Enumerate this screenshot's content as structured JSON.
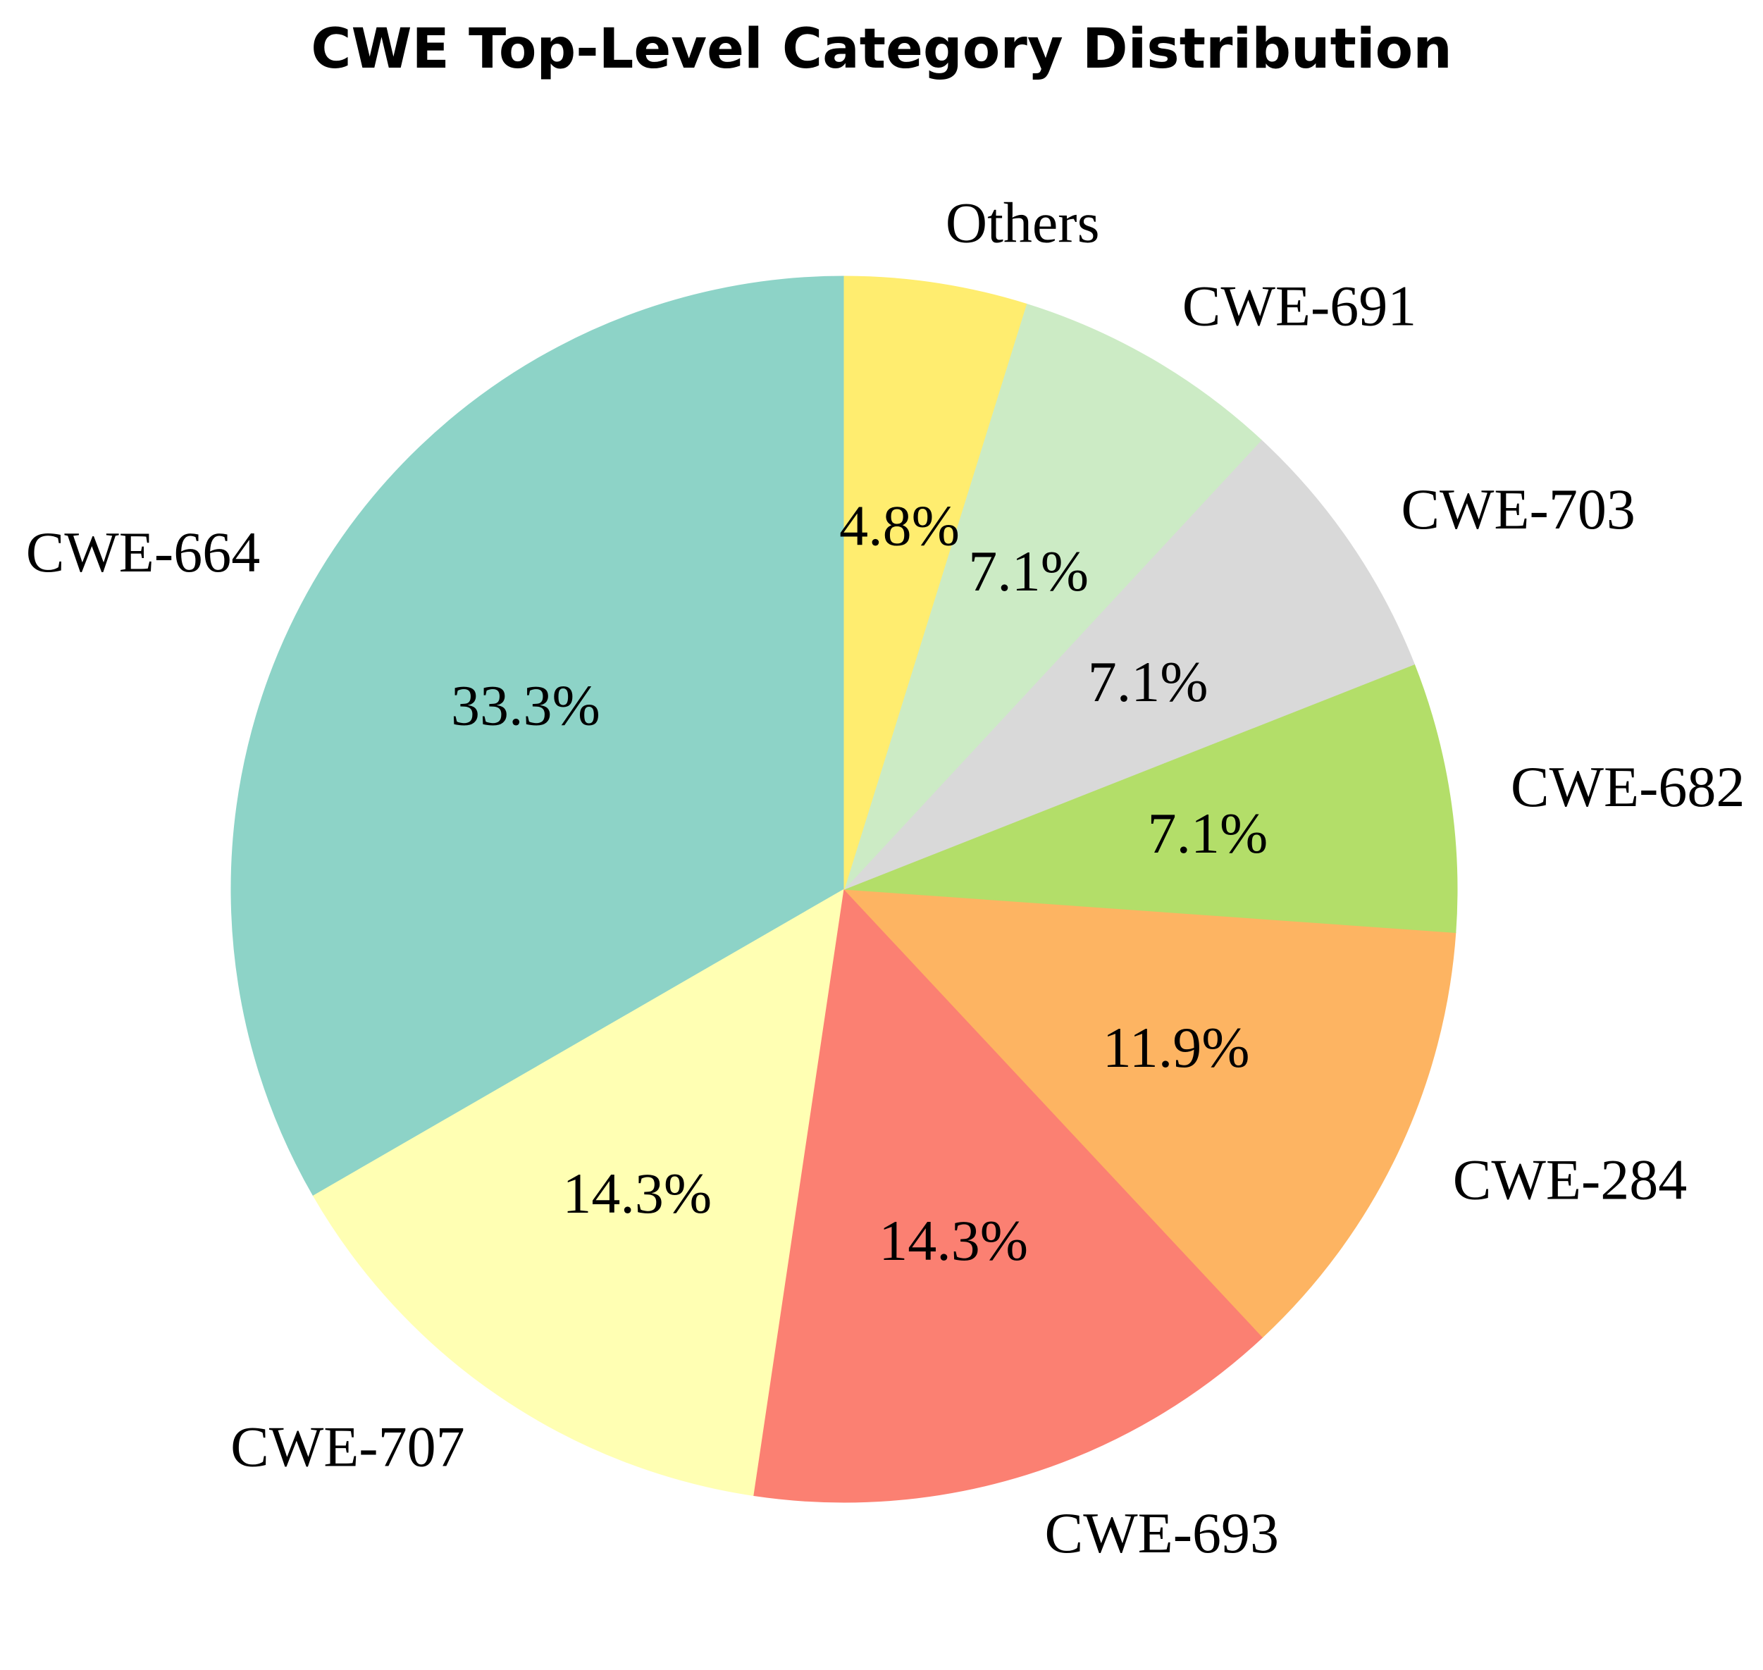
{
  "chart_data": {
    "type": "pie",
    "title": "CWE Top-Level Category Distribution",
    "start_angle_deg": 90,
    "direction": "counterclockwise",
    "legend": "none",
    "slices": [
      {
        "label": "CWE-664",
        "value": 33.3,
        "pct_text": "33.3%",
        "color": "#8dd3c7"
      },
      {
        "label": "CWE-707",
        "value": 14.3,
        "pct_text": "14.3%",
        "color": "#ffffb3"
      },
      {
        "label": "CWE-693",
        "value": 14.3,
        "pct_text": "14.3%",
        "color": "#fb8072"
      },
      {
        "label": "CWE-284",
        "value": 11.9,
        "pct_text": "11.9%",
        "color": "#fdb462"
      },
      {
        "label": "CWE-682",
        "value": 7.1,
        "pct_text": "7.1%",
        "color": "#b3de69"
      },
      {
        "label": "CWE-703",
        "value": 7.1,
        "pct_text": "7.1%",
        "color": "#d9d9d9"
      },
      {
        "label": "CWE-691",
        "value": 7.1,
        "pct_text": "7.1%",
        "color": "#ccebc5"
      },
      {
        "label": "Others",
        "value": 4.8,
        "pct_text": "4.8%",
        "color": "#ffed6f"
      }
    ]
  }
}
